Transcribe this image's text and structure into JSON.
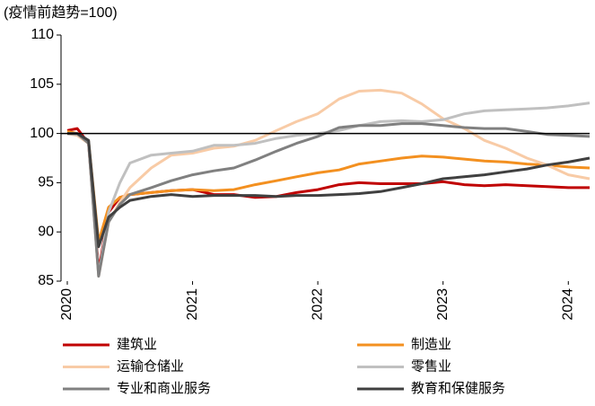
{
  "chart_data": {
    "type": "line",
    "y_label": "(疫情前趋势=100)",
    "x": [
      2020,
      2020.08,
      2020.17,
      2020.25,
      2020.33,
      2020.42,
      2020.5,
      2020.67,
      2020.83,
      2021.0,
      2021.17,
      2021.33,
      2021.5,
      2021.67,
      2021.83,
      2022.0,
      2022.17,
      2022.33,
      2022.5,
      2022.67,
      2022.83,
      2023.0,
      2023.17,
      2023.33,
      2023.5,
      2023.67,
      2023.83,
      2024.0,
      2024.17
    ],
    "series": [
      {
        "name": "建筑业",
        "color": "#c00000",
        "values": [
          100.3,
          100.5,
          99,
          86,
          92,
          93.5,
          93.8,
          94,
          94.2,
          94.3,
          93.8,
          93.8,
          93.5,
          93.6,
          94.0,
          94.3,
          94.8,
          95,
          94.9,
          94.9,
          94.9,
          95.1,
          94.8,
          94.7,
          94.8,
          94.7,
          94.6,
          94.5,
          94.5
        ]
      },
      {
        "name": "制造业",
        "color": "#f39020",
        "values": [
          100.2,
          100,
          99.2,
          89,
          92.5,
          93.5,
          93.8,
          94,
          94.2,
          94.3,
          94.2,
          94.3,
          94.8,
          95.2,
          95.6,
          96,
          96.3,
          96.9,
          97.2,
          97.5,
          97.7,
          97.6,
          97.4,
          97.2,
          97.1,
          96.9,
          96.8,
          96.6,
          96.5
        ]
      },
      {
        "name": "运输仓储业",
        "color": "#f8cba6",
        "values": [
          100,
          99.8,
          99,
          85.5,
          91,
          93,
          94.5,
          96.5,
          97.8,
          98.0,
          98.5,
          98.7,
          99.3,
          100.3,
          101.2,
          102,
          103.5,
          104.3,
          104.4,
          104.1,
          103.0,
          101.5,
          100.5,
          99.3,
          98.5,
          97.5,
          96.8,
          95.8,
          95.4
        ]
      },
      {
        "name": "零售业",
        "color": "#c0c0c0",
        "values": [
          100,
          99.9,
          99.2,
          85.5,
          92,
          95,
          97,
          97.8,
          98,
          98.2,
          98.8,
          98.8,
          99,
          99.5,
          99.8,
          100.0,
          100.3,
          100.8,
          101.2,
          101.3,
          101.2,
          101.4,
          102.0,
          102.3,
          102.4,
          102.5,
          102.6,
          102.8,
          103.1
        ]
      },
      {
        "name": "专业和商业服务",
        "color": "#808080",
        "values": [
          100,
          100,
          99,
          85.5,
          91,
          92.8,
          93.8,
          94.5,
          95.2,
          95.8,
          96.2,
          96.5,
          97.3,
          98.2,
          99.0,
          99.7,
          100.6,
          100.8,
          100.8,
          101.0,
          101.0,
          100.8,
          100.6,
          100.5,
          100.5,
          100.2,
          99.9,
          99.8,
          99.7
        ]
      },
      {
        "name": "教育和保健服务",
        "color": "#404040",
        "values": [
          100,
          100,
          99.3,
          88.5,
          91.5,
          92.5,
          93.2,
          93.6,
          93.8,
          93.6,
          93.7,
          93.7,
          93.7,
          93.6,
          93.7,
          93.7,
          93.8,
          93.9,
          94.1,
          94.5,
          94.9,
          95.4,
          95.6,
          95.8,
          96.1,
          96.4,
          96.8,
          97.1,
          97.5
        ]
      }
    ],
    "hline": 100,
    "xlim": [
      2019.95,
      2024.17
    ],
    "xticks": [
      2020,
      2021,
      2022,
      2023,
      2024
    ],
    "ylim": [
      85,
      110
    ],
    "yticks": [
      85,
      90,
      95,
      100,
      105,
      110
    ]
  }
}
